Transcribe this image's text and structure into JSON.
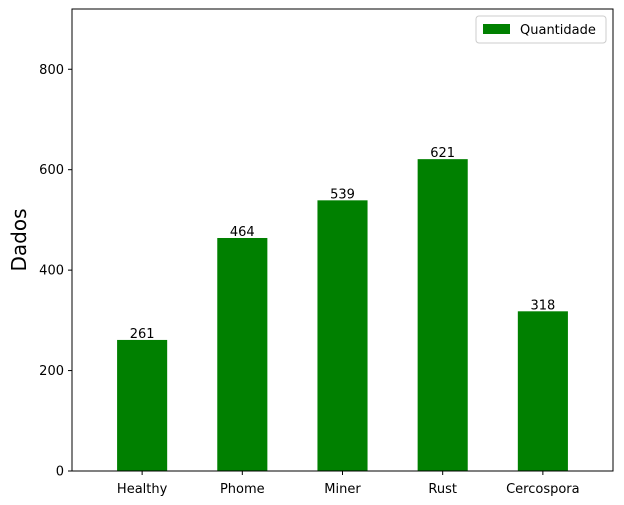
{
  "chart_data": {
    "type": "bar",
    "title": "",
    "xlabel": "",
    "ylabel": "Dados",
    "categories": [
      "Healthy",
      "Phome",
      "Miner",
      "Rust",
      "Cercospora"
    ],
    "series": [
      {
        "name": "Quantidade",
        "values": [
          261,
          464,
          539,
          621,
          318
        ]
      }
    ],
    "ylim": [
      0,
      920
    ],
    "yticks": [
      0,
      200,
      400,
      600,
      800
    ],
    "data_labels": true,
    "legend_position": "upper right",
    "grid": false,
    "colors": {
      "bar": "#008000"
    }
  }
}
